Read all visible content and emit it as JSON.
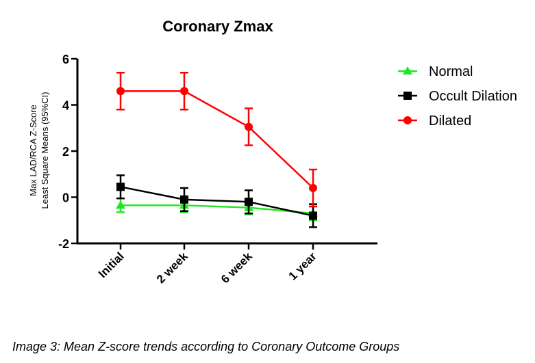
{
  "chart_data": {
    "type": "line",
    "title": "Coronary Zmax",
    "xlabel": "",
    "ylabel_lines": [
      "Max LAD/RCA Z-Score",
      "Least Square Means (95%CI)"
    ],
    "categories": [
      "Initial",
      "2 week",
      "6 week",
      "1 year"
    ],
    "ylim": [
      -2,
      6
    ],
    "yticks": [
      -2,
      0,
      2,
      4,
      6
    ],
    "grid": false,
    "legend_position": "right",
    "series": [
      {
        "name": "Normal",
        "color": "#22e622",
        "marker": "triangle",
        "values": [
          -0.35,
          -0.35,
          -0.45,
          -0.7
        ],
        "ci_low": [
          -0.65,
          -0.65,
          -0.75,
          -1.0
        ],
        "ci_high": [
          -0.05,
          -0.05,
          -0.15,
          -0.4
        ]
      },
      {
        "name": "Occult Dilation",
        "color": "#000000",
        "marker": "square",
        "values": [
          0.45,
          -0.1,
          -0.2,
          -0.8
        ],
        "ci_low": [
          -0.05,
          -0.6,
          -0.7,
          -1.3
        ],
        "ci_high": [
          0.95,
          0.4,
          0.3,
          -0.3
        ]
      },
      {
        "name": "Dilated",
        "color": "#ff0000",
        "marker": "circle",
        "values": [
          4.6,
          4.6,
          3.05,
          0.4
        ],
        "ci_low": [
          3.8,
          3.8,
          2.25,
          -0.4
        ],
        "ci_high": [
          5.4,
          5.4,
          3.85,
          1.2
        ]
      }
    ]
  },
  "caption": "Image 3: Mean Z-score trends according to Coronary Outcome Groups"
}
